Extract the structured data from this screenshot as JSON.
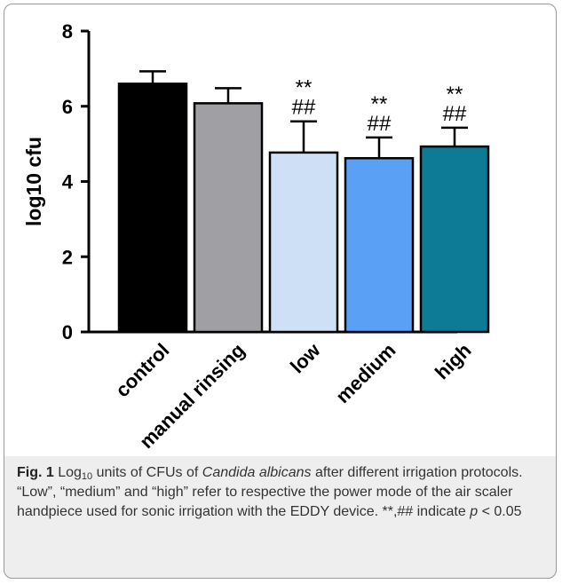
{
  "chart_data": {
    "type": "bar",
    "ylabel": "log10 cfu",
    "xlabel": "",
    "ylim": [
      0,
      8
    ],
    "yticks": [
      0,
      2,
      4,
      6,
      8
    ],
    "categories": [
      "control",
      "manual rinsing",
      "low",
      "medium",
      "high"
    ],
    "values": [
      6.6,
      6.08,
      4.77,
      4.62,
      4.93
    ],
    "errors": [
      0.33,
      0.4,
      0.83,
      0.55,
      0.5
    ],
    "colors": [
      "#000000",
      "#a0a0a4",
      "#cde0f6",
      "#5aa0f5",
      "#0e7b96"
    ],
    "annotations": [
      "",
      "",
      "**\n##",
      "**\n##",
      "**\n##"
    ]
  },
  "caption": {
    "fig_label": "Fig. 1",
    "text_a": " Log",
    "sub": "10",
    "text_b": " units of CFUs of ",
    "species": "Candida albicans",
    "text_c": " after different irrigation protocols. “Low”, “medium” and “high” refer to respective the power mode of the air scaler handpiece used for sonic irrigation with the EDDY device. **,## indicate ",
    "p": "p",
    "text_d": " < 0.05"
  }
}
